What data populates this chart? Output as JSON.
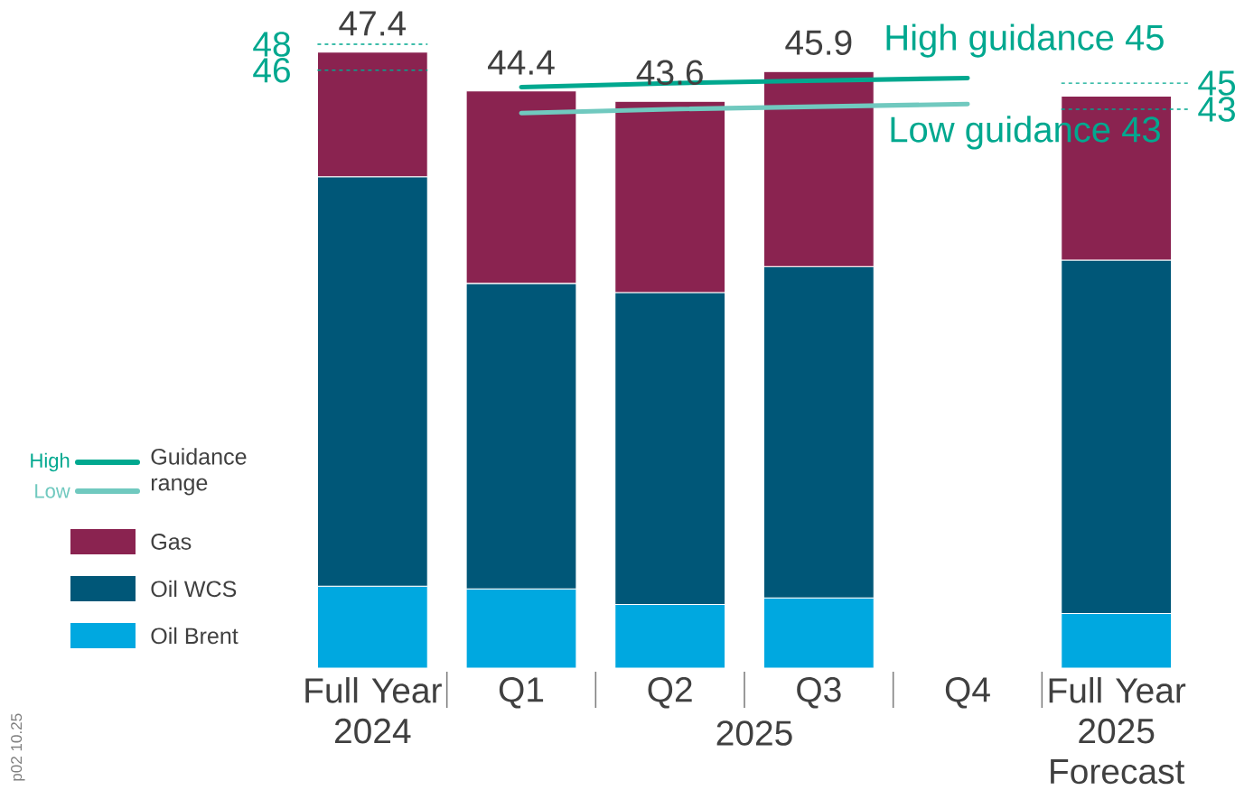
{
  "chart_data": {
    "type": "bar",
    "stacked": true,
    "categories": [
      "Full Year 2024",
      "Q1",
      "Q2",
      "Q3",
      "Q4",
      "Full Year 2025 Forecast"
    ],
    "series": [
      {
        "name": "Oil Brent",
        "color": "#00a8e0",
        "values": [
          6.3,
          6.1,
          4.9,
          5.4,
          null,
          4.2
        ]
      },
      {
        "name": "Oil WCS",
        "color": "#005778",
        "values": [
          31.5,
          23.5,
          24.0,
          25.5,
          null,
          27.2
        ]
      },
      {
        "name": "Gas",
        "color": "#8a2350",
        "values": [
          9.6,
          14.8,
          14.7,
          15.0,
          null,
          12.6
        ]
      },
      {
        "name": "High",
        "type": "line",
        "color": "#00a88f",
        "values": [
          null,
          44.7,
          45.0,
          45.2,
          45.4,
          null
        ]
      },
      {
        "name": "Low",
        "type": "line",
        "color": "#70c9bf",
        "values": [
          null,
          42.7,
          43.0,
          43.2,
          43.4,
          null
        ]
      }
    ],
    "totals": [
      "47.4",
      "44.4",
      "43.6",
      "45.9",
      null,
      null
    ],
    "ylim": [
      0,
      48
    ],
    "yticks": [
      46,
      48
    ],
    "y2lim": [
      0,
      48
    ],
    "y2ticks": [
      43,
      45
    ],
    "legend": "left",
    "legend_title": "Guidance range",
    "marker": "none",
    "line_style": "solid",
    "annotations": [
      "High guidance 45",
      "Low guidance 43",
      "2025",
      "p02 10.25"
    ]
  }
}
